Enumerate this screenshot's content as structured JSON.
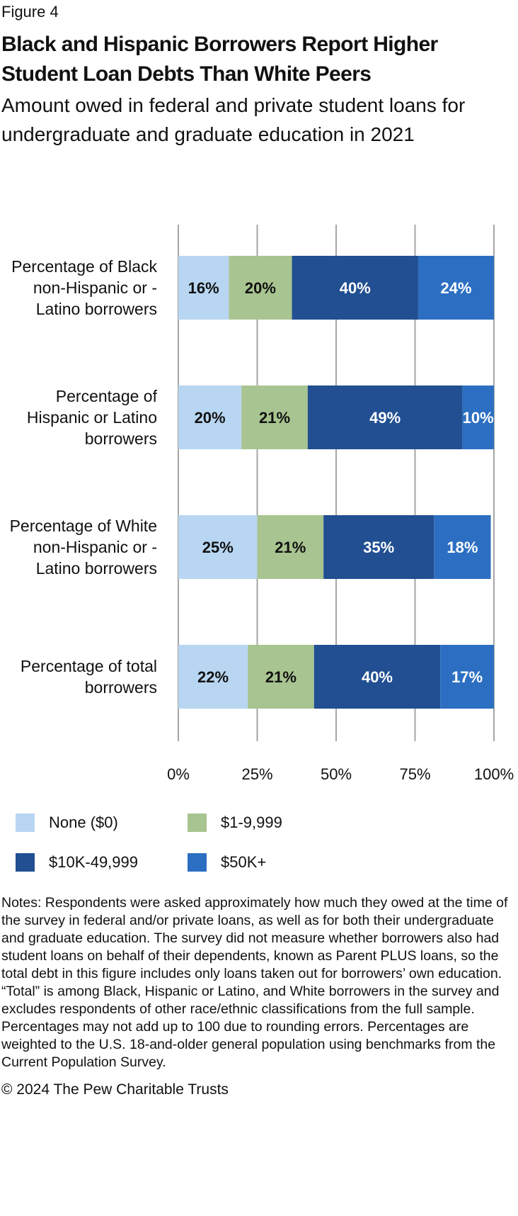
{
  "figure_label": "Figure 4",
  "title": "Black and Hispanic Borrowers Report Higher Student Loan Debts Than White Peers",
  "subtitle": "Amount owed in federal and private student loans for undergraduate and graduate education in 2021",
  "chart_data": {
    "type": "bar",
    "orientation": "horizontal-stacked",
    "categories": [
      "Percentage of Black non-Hispanic or -Latino borrowers",
      "Percentage of Hispanic or Latino borrowers",
      "Percentage of White non-Hispanic or -Latino borrowers",
      "Percentage of total borrowers"
    ],
    "series": [
      {
        "name": "None ($0)",
        "color": "#b8d6f2",
        "label_color": "#111111",
        "values": [
          16,
          20,
          25,
          22
        ]
      },
      {
        "name": "$1-9,999",
        "color": "#a8c490",
        "label_color": "#111111",
        "values": [
          20,
          21,
          21,
          21
        ]
      },
      {
        "name": "$10K-49,999",
        "color": "#214f91",
        "label_color": "#ffffff",
        "values": [
          40,
          49,
          35,
          40
        ]
      },
      {
        "name": "$50K+",
        "color": "#2c6fc2",
        "label_color": "#ffffff",
        "values": [
          24,
          10,
          18,
          17
        ]
      }
    ],
    "xticks": [
      "0%",
      "25%",
      "50%",
      "75%",
      "100%"
    ],
    "xlim": [
      0,
      100
    ],
    "grid": true,
    "legend": "bottom"
  },
  "notes": "Notes: Respondents were asked approximately how much they owed at the time of the survey in federal and/or private loans, as well as for both their undergraduate and graduate education. The survey did not measure whether borrowers also had student loans on behalf of their dependents, known as Parent PLUS loans, so the total debt in this figure includes only loans taken out for borrowers’ own education. “Total” is among Black, Hispanic or Latino, and White borrowers in the survey and excludes respondents of other race/ethnic classifications from the full sample. Percentages may not add up to 100 due to rounding errors. Percentages are weighted to the U.S. 18-and-older general population using benchmarks from the Current Population Survey.",
  "copyright": "© 2024 The Pew Charitable Trusts"
}
